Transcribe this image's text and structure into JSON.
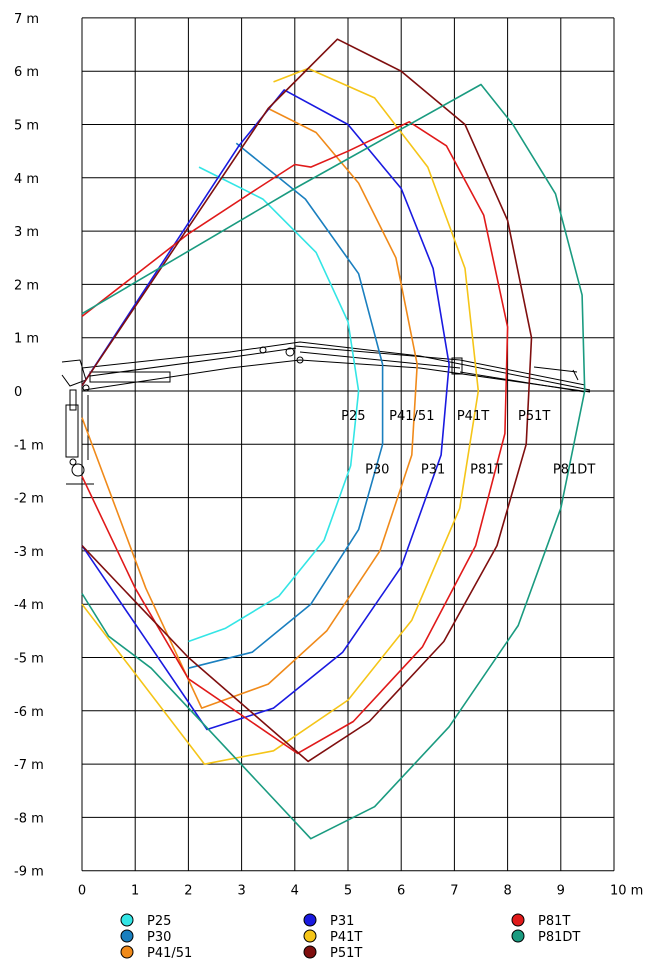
{
  "chart_data": {
    "type": "line",
    "title": "",
    "xlabel": "",
    "ylabel": "",
    "x_unit": "10 m",
    "xlim": [
      0,
      10
    ],
    "ylim": [
      -9,
      7
    ],
    "x_ticks": [
      "0",
      "1",
      "2",
      "3",
      "4",
      "5",
      "6",
      "7",
      "8",
      "9",
      "10 m"
    ],
    "y_ticks": [
      "7 m",
      "6 m",
      "5 m",
      "4 m",
      "3 m",
      "2 m",
      "1 m",
      "0",
      "-1 m",
      "-2 m",
      "-3 m",
      "-4 m",
      "-5 m",
      "-6 m",
      "-7 m",
      "-8 m",
      "-9 m"
    ],
    "grid": true,
    "legend_position": "bottom",
    "legend": [
      {
        "name": "P25",
        "color": "#33e5e5"
      },
      {
        "name": "P30",
        "color": "#1a7fbf"
      },
      {
        "name": "P41/51",
        "color": "#f08a1a"
      },
      {
        "name": "P31",
        "color": "#1a1ae0"
      },
      {
        "name": "P41T",
        "color": "#f5c518"
      },
      {
        "name": "P51T",
        "color": "#7f0f0f"
      },
      {
        "name": "P81T",
        "color": "#e01a1a"
      },
      {
        "name": "P81DT",
        "color": "#1a9b80"
      }
    ],
    "curve_labels": [
      {
        "text": "P25",
        "x": 5.1,
        "y": -0.45
      },
      {
        "text": "P41/51",
        "x": 6.2,
        "y": -0.45
      },
      {
        "text": "P41T",
        "x": 7.35,
        "y": -0.45
      },
      {
        "text": "P51T",
        "x": 8.5,
        "y": -0.45
      },
      {
        "text": "P30",
        "x": 5.55,
        "y": -1.45
      },
      {
        "text": "P31",
        "x": 6.6,
        "y": -1.45
      },
      {
        "text": "P81T",
        "x": 7.6,
        "y": -1.45
      },
      {
        "text": "P81DT",
        "x": 9.25,
        "y": -1.45
      }
    ],
    "series": [
      {
        "color": "#33e5e5",
        "points": [
          [
            2.2,
            4.2
          ],
          [
            3.4,
            3.6
          ],
          [
            4.4,
            2.6
          ],
          [
            5.0,
            1.3
          ],
          [
            5.2,
            0.0
          ],
          [
            5.05,
            -1.4
          ],
          [
            4.55,
            -2.8
          ],
          [
            3.7,
            -3.85
          ],
          [
            2.7,
            -4.45
          ],
          [
            2.0,
            -4.7
          ]
        ]
      },
      {
        "color": "#1a7fbf",
        "points": [
          [
            2.9,
            4.65
          ],
          [
            4.2,
            3.6
          ],
          [
            5.2,
            2.2
          ],
          [
            5.65,
            0.5
          ],
          [
            5.65,
            -1.0
          ],
          [
            5.2,
            -2.6
          ],
          [
            4.3,
            -4.0
          ],
          [
            3.2,
            -4.9
          ],
          [
            2.0,
            -5.2
          ]
        ]
      },
      {
        "color": "#f08a1a",
        "points": [
          [
            0.0,
            -0.5
          ],
          [
            1.2,
            -3.7
          ],
          [
            2.25,
            -5.95
          ],
          [
            3.5,
            -5.5
          ],
          [
            4.6,
            -4.5
          ],
          [
            5.6,
            -3.0
          ],
          [
            6.2,
            -1.2
          ],
          [
            6.3,
            0.5
          ],
          [
            5.9,
            2.5
          ],
          [
            5.2,
            3.9
          ],
          [
            4.4,
            4.85
          ],
          [
            3.5,
            5.3
          ]
        ]
      },
      {
        "color": "#1a1ae0",
        "points": [
          [
            0.0,
            -2.9
          ],
          [
            2.35,
            -6.35
          ],
          [
            3.6,
            -5.95
          ],
          [
            4.9,
            -4.9
          ],
          [
            6.0,
            -3.3
          ],
          [
            6.75,
            -1.2
          ],
          [
            6.9,
            0.5
          ],
          [
            6.6,
            2.3
          ],
          [
            6.0,
            3.8
          ],
          [
            5.0,
            5.0
          ],
          [
            3.8,
            5.65
          ],
          [
            2.95,
            4.6
          ],
          [
            0.0,
            0.1
          ]
        ]
      },
      {
        "color": "#f5c518",
        "points": [
          [
            0.0,
            -4.0
          ],
          [
            2.3,
            -7.0
          ],
          [
            3.6,
            -6.75
          ],
          [
            5.0,
            -5.8
          ],
          [
            6.2,
            -4.3
          ],
          [
            7.1,
            -2.2
          ],
          [
            7.45,
            0.0
          ],
          [
            7.2,
            2.3
          ],
          [
            6.5,
            4.2
          ],
          [
            5.5,
            5.5
          ],
          [
            4.25,
            6.05
          ],
          [
            3.6,
            5.8
          ]
        ]
      },
      {
        "color": "#e01a1a",
        "points": [
          [
            0.0,
            -1.6
          ],
          [
            1.0,
            -3.7
          ],
          [
            2.0,
            -5.4
          ],
          [
            4.05,
            -6.8
          ],
          [
            5.1,
            -6.2
          ],
          [
            6.4,
            -4.8
          ],
          [
            7.4,
            -2.9
          ],
          [
            7.95,
            -0.8
          ],
          [
            8.0,
            1.2
          ],
          [
            7.55,
            3.3
          ],
          [
            6.85,
            4.6
          ],
          [
            6.15,
            5.05
          ],
          [
            5.0,
            4.5
          ],
          [
            4.3,
            4.2
          ],
          [
            4.0,
            4.25
          ],
          [
            3.3,
            3.8
          ],
          [
            2.0,
            2.95
          ],
          [
            0.0,
            1.4
          ]
        ]
      },
      {
        "color": "#7f0f0f",
        "points": [
          [
            0.0,
            -2.9
          ],
          [
            2.0,
            -5.0
          ],
          [
            4.25,
            -6.95
          ],
          [
            5.4,
            -6.2
          ],
          [
            6.8,
            -4.7
          ],
          [
            7.8,
            -2.9
          ],
          [
            8.35,
            -1.0
          ],
          [
            8.45,
            1.0
          ],
          [
            8.0,
            3.2
          ],
          [
            7.2,
            5.0
          ],
          [
            6.0,
            6.0
          ],
          [
            4.8,
            6.6
          ],
          [
            3.5,
            5.3
          ],
          [
            0.0,
            0.1
          ]
        ]
      },
      {
        "color": "#1a9b80",
        "points": [
          [
            0.0,
            -3.8
          ],
          [
            0.5,
            -4.6
          ],
          [
            1.3,
            -5.2
          ],
          [
            2.8,
            -6.8
          ],
          [
            4.3,
            -8.4
          ],
          [
            5.5,
            -7.8
          ],
          [
            6.9,
            -6.3
          ],
          [
            8.2,
            -4.4
          ],
          [
            9.0,
            -2.2
          ],
          [
            9.45,
            0.0
          ],
          [
            9.4,
            1.8
          ],
          [
            8.9,
            3.7
          ],
          [
            8.1,
            5.0
          ],
          [
            7.5,
            5.75
          ],
          [
            4.0,
            3.8
          ],
          [
            0.0,
            1.45
          ]
        ]
      }
    ]
  }
}
